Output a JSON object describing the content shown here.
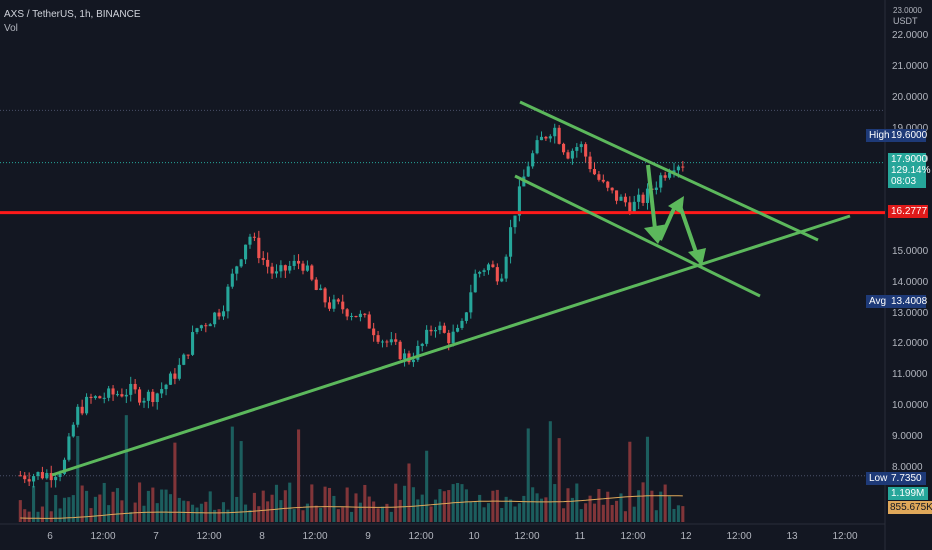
{
  "header": {
    "symbol": "AXS / TetherUS, 1h, BINANCE",
    "indicator": "Vol"
  },
  "price_axis": {
    "unit_top": "23.0000",
    "unit": "USDT",
    "labels": [
      "22.0000",
      "21.0000",
      "20.0000",
      "19.0000",
      "18.0000",
      "15.0000",
      "14.0000",
      "13.0000",
      "12.0000",
      "11.0000",
      "10.0000",
      "9.0000",
      "8.0000"
    ]
  },
  "time_axis": {
    "labels": [
      "6",
      "12:00",
      "7",
      "12:00",
      "8",
      "12:00",
      "9",
      "12:00",
      "10",
      "12:00",
      "11",
      "12:00",
      "12",
      "12:00",
      "13",
      "12:00"
    ]
  },
  "markers": {
    "high_label": "High",
    "high_value": "19.6000",
    "current_price": "17.9000",
    "current_change": "129.14%",
    "countdown": "08:03",
    "red_level": "16.2777",
    "avg_label": "Avg",
    "avg_value": "13.4008",
    "low_label": "Low",
    "low_value": "7.7350",
    "vol_value": "1.199M",
    "vol_ma_value": "855.675K"
  },
  "colors": {
    "background": "#131722",
    "up": "#26a69a",
    "down": "#ef5350",
    "trendline": "#5cb85c",
    "resistance": "#ff1a1a",
    "vol_ma": "#e0a85a"
  },
  "chart_data": {
    "type": "candlestick",
    "symbol": "AXS / TetherUS",
    "interval": "1h",
    "x_range": [
      "6",
      "13 12:00"
    ],
    "ylim": [
      7.5,
      23.0
    ],
    "resistance_level": 16.2777,
    "points": [
      [
        "5 18:00",
        7.75
      ],
      [
        "6 00:00",
        7.8
      ],
      [
        "6 03:00",
        8.0
      ],
      [
        "6 06:00",
        9.8
      ],
      [
        "6 09:00",
        10.2
      ],
      [
        "6 12:00",
        10.3
      ],
      [
        "6 15:00",
        10.4
      ],
      [
        "6 18:00",
        10.5
      ],
      [
        "6 21:00",
        10.3
      ],
      [
        "7 00:00",
        10.4
      ],
      [
        "7 03:00",
        10.8
      ],
      [
        "7 06:00",
        11.4
      ],
      [
        "7 09:00",
        12.5
      ],
      [
        "7 12:00",
        12.8
      ],
      [
        "7 15:00",
        13.2
      ],
      [
        "7 18:00",
        14.5
      ],
      [
        "7 21:00",
        15.6
      ],
      [
        "8 00:00",
        14.8
      ],
      [
        "8 03:00",
        14.2
      ],
      [
        "8 06:00",
        14.5
      ],
      [
        "8 09:00",
        14.7
      ],
      [
        "8 12:00",
        13.8
      ],
      [
        "8 15:00",
        13.3
      ],
      [
        "8 18:00",
        13.2
      ],
      [
        "8 21:00",
        13.0
      ],
      [
        "9 00:00",
        12.7
      ],
      [
        "9 03:00",
        12.2
      ],
      [
        "9 06:00",
        11.9
      ],
      [
        "9 09:00",
        11.5
      ],
      [
        "9 12:00",
        11.9
      ],
      [
        "9 15:00",
        12.7
      ],
      [
        "9 18:00",
        12.2
      ],
      [
        "9 21:00",
        12.4
      ],
      [
        "10 00:00",
        14.2
      ],
      [
        "10 03:00",
        14.6
      ],
      [
        "10 06:00",
        14.2
      ],
      [
        "10 09:00",
        16.2
      ],
      [
        "10 12:00",
        17.8
      ],
      [
        "10 15:00",
        18.6
      ],
      [
        "10 18:00",
        19.1
      ],
      [
        "10 21:00",
        18.2
      ],
      [
        "11 00:00",
        18.5
      ],
      [
        "11 03:00",
        17.6
      ],
      [
        "11 06:00",
        17.0
      ],
      [
        "11 09:00",
        16.7
      ],
      [
        "11 12:00",
        16.5
      ],
      [
        "11 15:00",
        16.8
      ],
      [
        "11 18:00",
        17.4
      ],
      [
        "11 21:00",
        17.9
      ]
    ],
    "volume_ma_last": "855.675K"
  }
}
